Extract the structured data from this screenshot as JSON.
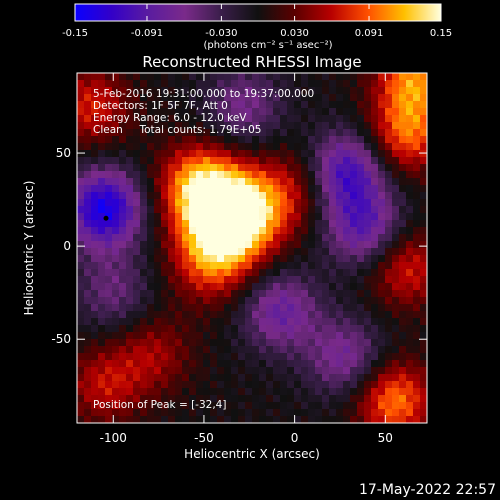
{
  "figure": {
    "title": "Reconstructed RHESSI Image",
    "date_stamp": "17-May-2022 22:57"
  },
  "colorbar": {
    "ticks": [
      "-0.15",
      "-0.091",
      "-0.030",
      "0.030",
      "0.091",
      "0.15"
    ],
    "tick_values": [
      -0.15,
      -0.091,
      -0.03,
      0.03,
      0.091,
      0.15
    ],
    "range": [
      -0.15,
      0.15
    ],
    "unit_label": "(photons cm⁻² s⁻¹ asec⁻²)",
    "colormap": [
      "#0a00ff",
      "#3300c8",
      "#5a1ca0",
      "#7a2a8a",
      "#3a1e4a",
      "#101010",
      "#5a0000",
      "#b80000",
      "#ff5000",
      "#ffc000",
      "#ffffe0"
    ]
  },
  "annotations": {
    "line1": "5-Feb-2016 19:31:00.000 to 19:37:00.000",
    "line2": "Detectors: 1F 5F 7F, Att 0",
    "line3": "Energy Range: 6.0 - 12.0 keV",
    "line4": "Clean     Total counts: 1.79E+05",
    "peak": "Position of Peak = [-32,4]"
  },
  "chart_data": {
    "type": "heatmap",
    "title": "Reconstructed RHESSI Image",
    "xlabel": "Heliocentric X (arcsec)",
    "ylabel": "Heliocentric Y (arcsec)",
    "xlim": [
      -120,
      73
    ],
    "ylim": [
      -95,
      93
    ],
    "x_ticks": [
      -100,
      -50,
      0,
      50
    ],
    "x_tick_labels": [
      "-100",
      "-50",
      "0",
      "50"
    ],
    "y_ticks": [
      -50,
      0,
      50
    ],
    "y_tick_labels": [
      "-50",
      "0",
      "50"
    ],
    "peak_position": [
      -32,
      4
    ],
    "marker": {
      "x": -104,
      "y": 15
    },
    "value_range": [
      -0.15,
      0.15
    ],
    "features": [
      {
        "kind": "bright source",
        "x": -36,
        "y": 14,
        "value": 0.15
      },
      {
        "kind": "bright source",
        "x": -52,
        "y": 32,
        "value": 0.12
      },
      {
        "kind": "bright source",
        "x": -46,
        "y": -8,
        "value": 0.08
      },
      {
        "kind": "bright source",
        "x": -18,
        "y": 22,
        "value": 0.06
      },
      {
        "kind": "positive region",
        "x": 62,
        "y": 60,
        "value": 0.09
      },
      {
        "kind": "positive region",
        "x": 62,
        "y": -12,
        "value": 0.07
      },
      {
        "kind": "positive region",
        "x": 55,
        "y": -83,
        "value": 0.1
      },
      {
        "kind": "positive region",
        "x": 66,
        "y": 90,
        "value": 0.1
      },
      {
        "kind": "positive region",
        "x": -112,
        "y": 75,
        "value": 0.07
      },
      {
        "kind": "positive region",
        "x": -105,
        "y": -75,
        "value": 0.06
      },
      {
        "kind": "positive region",
        "x": -78,
        "y": -58,
        "value": 0.05
      },
      {
        "kind": "positive region",
        "x": 4,
        "y": 33,
        "value": 0.04
      },
      {
        "kind": "negative region",
        "x": -105,
        "y": 20,
        "value": -0.14
      },
      {
        "kind": "negative region",
        "x": 28,
        "y": 40,
        "value": -0.11
      },
      {
        "kind": "negative region",
        "x": 38,
        "y": 10,
        "value": -0.09
      },
      {
        "kind": "negative region",
        "x": -8,
        "y": -35,
        "value": -0.08
      },
      {
        "kind": "negative region",
        "x": 28,
        "y": -60,
        "value": -0.07
      },
      {
        "kind": "negative region",
        "x": -28,
        "y": 75,
        "value": -0.06
      },
      {
        "kind": "negative region",
        "x": -100,
        "y": -25,
        "value": -0.05
      }
    ]
  }
}
